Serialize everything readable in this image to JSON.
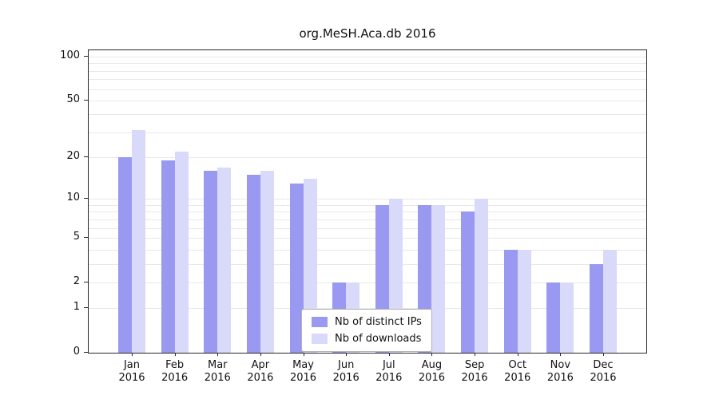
{
  "page": {
    "background": "#ffffff"
  },
  "chart_data": {
    "type": "bar",
    "title": "org.MeSH.Aca.db 2016",
    "categories": [
      "Jan 2016",
      "Feb 2016",
      "Mar 2016",
      "Apr 2016",
      "May 2016",
      "Jun 2016",
      "Jul 2016",
      "Aug 2016",
      "Sep 2016",
      "Oct 2016",
      "Nov 2016",
      "Dec 2016"
    ],
    "series": [
      {
        "name": "Nb of distinct IPs",
        "color": "#9999f1",
        "values": [
          20,
          19,
          16,
          15,
          13,
          2,
          9,
          9,
          8,
          4,
          2,
          3
        ]
      },
      {
        "name": "Nb of downloads",
        "color": "#d9d9f9",
        "values": [
          31,
          22,
          17,
          16,
          14,
          2,
          10,
          9,
          10,
          4,
          2,
          4
        ]
      }
    ],
    "yticks": [
      0,
      1,
      2,
      5,
      10,
      20,
      50,
      100
    ],
    "gridlines": [
      1,
      2,
      3,
      4,
      5,
      6,
      7,
      8,
      9,
      10,
      20,
      30,
      40,
      50,
      60,
      70,
      80,
      90,
      100
    ],
    "scale": "log1p",
    "ylim": [
      0,
      100
    ],
    "xlabel": "",
    "ylabel": "",
    "legend_position": "bottom-center",
    "grid": "on",
    "grid_color": "#e8e8e8",
    "axis_color": "#262626",
    "background_color": "#ffffff"
  }
}
